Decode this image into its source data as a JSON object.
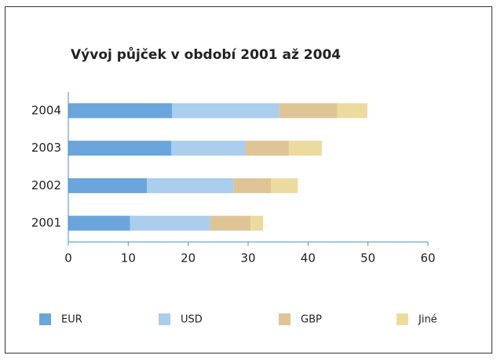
{
  "chart_data": {
    "type": "stacked-barh",
    "title": "Vývoj půjček v období 2001 až 2004",
    "categories": [
      "2001",
      "2002",
      "2003",
      "2004"
    ],
    "series": [
      {
        "name": "EUR",
        "color": "#6aa6dc",
        "values": [
          10.3,
          13.1,
          17.2,
          17.3
        ]
      },
      {
        "name": "USD",
        "color": "#abcdee",
        "values": [
          13.4,
          14.5,
          12.4,
          17.9
        ]
      },
      {
        "name": "GBP",
        "color": "#dfc596",
        "values": [
          6.7,
          6.2,
          7.2,
          9.7
        ]
      },
      {
        "name": "Jiné",
        "color": "#ecdb9e",
        "values": [
          2.1,
          4.5,
          5.5,
          5.0
        ]
      }
    ],
    "xlim": [
      0,
      60
    ],
    "xticks": [
      0,
      10,
      20,
      30,
      40,
      50,
      60
    ],
    "legend": "bottom"
  }
}
